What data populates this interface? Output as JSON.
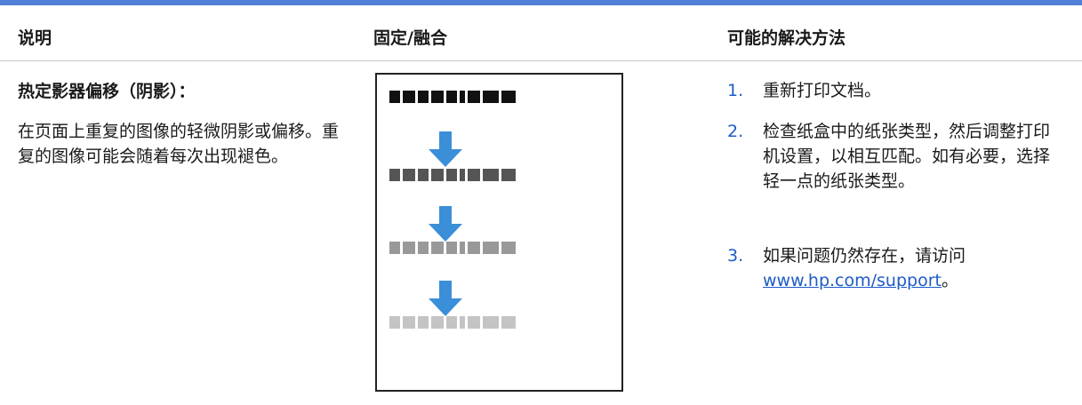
{
  "header": {
    "columns": [
      "说明",
      "固定/融合",
      "可能的解决方法"
    ]
  },
  "row": {
    "description": {
      "title": "热定影器偏移（阴影）：",
      "text": "在页面上重复的图像的轻微阴影或偏移。重复的图像可能会随着每次出现褪色。"
    },
    "solutions": [
      {
        "number": "1.",
        "text": "重新打印文档。"
      },
      {
        "number": "2.",
        "text": "检查纸盒中的纸张类型，然后调整打印机设置，以相互匹配。如有必要，选择轻一点的纸张类型。"
      },
      {
        "number": "3.",
        "text": "如果问题仍然存在，请访问",
        "link": "www.hp.com/support",
        "tail": "。"
      }
    ]
  }
}
